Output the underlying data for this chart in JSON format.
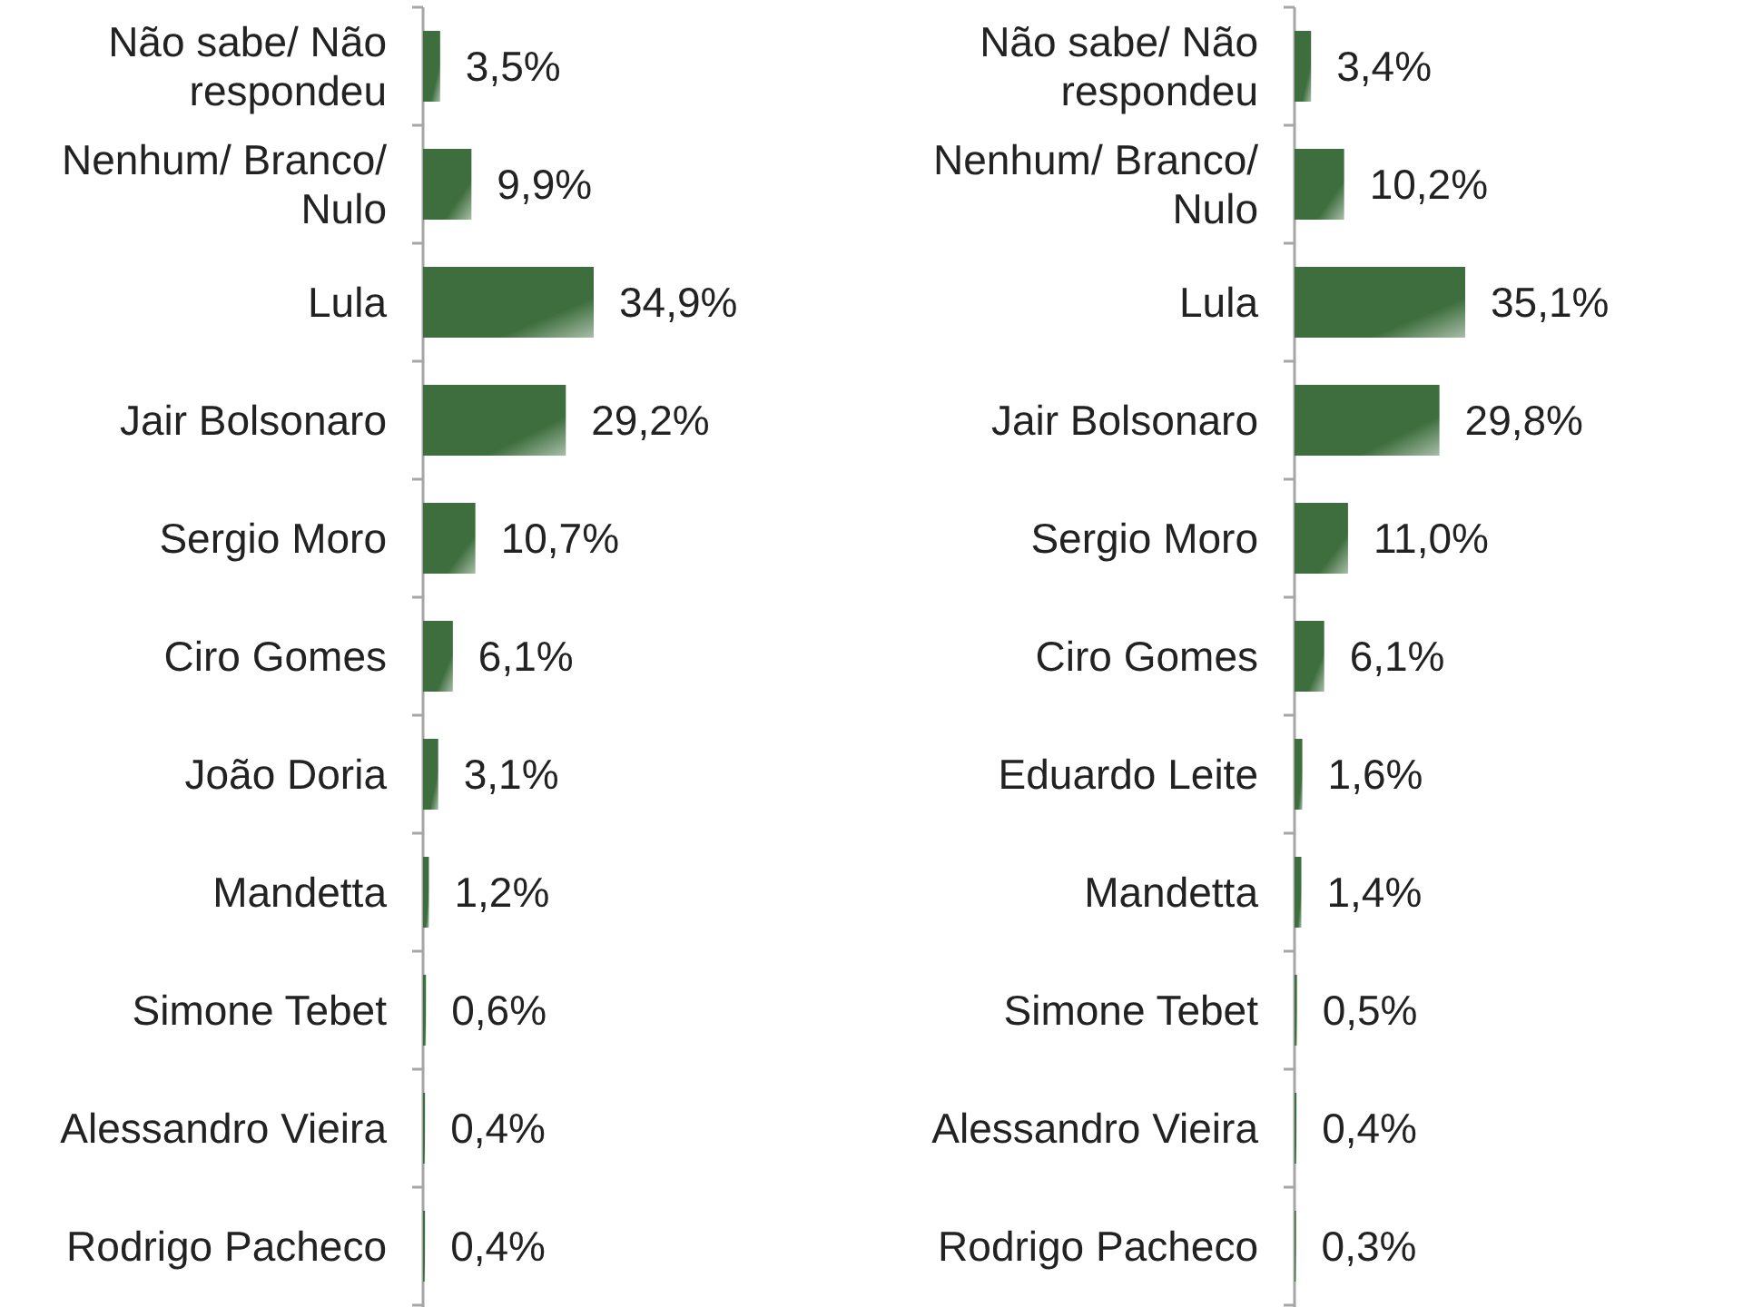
{
  "chart_data": [
    {
      "type": "bar",
      "orientation": "horizontal",
      "categories": [
        "Não sabe/ Não respondeu",
        "Nenhum/ Branco/ Nulo",
        "Lula",
        "Jair Bolsonaro",
        "Sergio Moro",
        "Ciro Gomes",
        "João Doria",
        "Mandetta",
        "Simone Tebet",
        "Alessandro Vieira",
        "Rodrigo Pacheco"
      ],
      "values": [
        3.5,
        9.9,
        34.9,
        29.2,
        10.7,
        6.1,
        3.1,
        1.2,
        0.6,
        0.4,
        0.4
      ],
      "value_labels": [
        "3,5%",
        "9,9%",
        "34,9%",
        "29,2%",
        "10,7%",
        "6,1%",
        "3,1%",
        "1,2%",
        "0,6%",
        "0,4%",
        "0,4%"
      ],
      "color": "#3e6e3e"
    },
    {
      "type": "bar",
      "orientation": "horizontal",
      "categories": [
        "Não sabe/ Não respondeu",
        "Nenhum/ Branco/ Nulo",
        "Lula",
        "Jair Bolsonaro",
        "Sergio Moro",
        "Ciro Gomes",
        "Eduardo Leite",
        "Mandetta",
        "Simone Tebet",
        "Alessandro Vieira",
        "Rodrigo Pacheco"
      ],
      "values": [
        3.4,
        10.2,
        35.1,
        29.8,
        11.0,
        6.1,
        1.6,
        1.4,
        0.5,
        0.4,
        0.3
      ],
      "value_labels": [
        "3,4%",
        "10,2%",
        "35,1%",
        "29,8%",
        "11,0%",
        "6,1%",
        "1,6%",
        "1,4%",
        "0,5%",
        "0,4%",
        "0,3%"
      ],
      "color": "#3e6e3e"
    }
  ]
}
